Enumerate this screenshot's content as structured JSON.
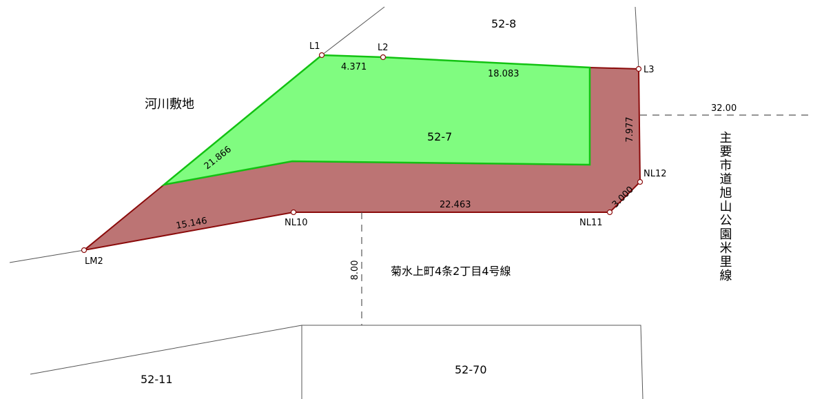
{
  "parcels": {
    "north": "52-8",
    "subject_green": "52-7",
    "south_left": "52-11",
    "south_right": "52-70"
  },
  "areas": {
    "river_land": "河川敷地",
    "road_south": "菊水上町4条2丁目4号線",
    "road_east": "主要市道旭山公園米里線"
  },
  "points": {
    "L1": "L1",
    "L2": "L2",
    "L3": "L3",
    "NL10": "NL10",
    "NL11": "NL11",
    "NL12": "NL12",
    "LM2": "LM2"
  },
  "dimensions": {
    "L1_L2": "4.371",
    "L2_L3": "18.083",
    "L1_LM2": "21.866",
    "LM2_NL10": "15.146",
    "NL10_NL11": "22.463",
    "NL11_NL12": "3.000",
    "NL12_L3": "7.977",
    "road_east_width": "32.00",
    "road_south_width": "8.00"
  },
  "colors": {
    "green_fill": "#80fc80",
    "green_stroke": "#12c212",
    "red_fill": "#bc7474",
    "red_stroke": "#8a0a0a",
    "line": "#555555"
  }
}
